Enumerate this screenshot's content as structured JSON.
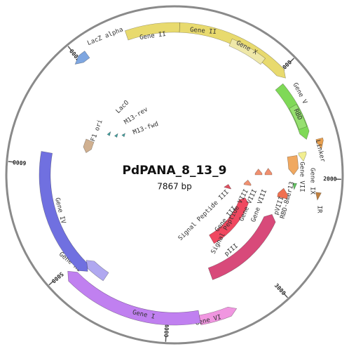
{
  "map": {
    "name": "PdPANA_8_13_9",
    "length": 7867,
    "length_label": "7867 bp",
    "ticks": [
      1000,
      2000,
      3000,
      4000,
      5000,
      6000,
      7000
    ],
    "features": [
      {
        "label": "LacZ alpha"
      },
      {
        "label": "Gene II"
      },
      {
        "label": "Gene II"
      },
      {
        "label": "Gene X"
      },
      {
        "label": "Gene V"
      },
      {
        "label": "RBD"
      },
      {
        "label": "Linker"
      },
      {
        "label": "Gene VII"
      },
      {
        "label": "Gene IX"
      },
      {
        "label": "IR"
      },
      {
        "label": "RBD-8mer13"
      },
      {
        "label": "pVIII"
      },
      {
        "label": "Signal Peptide III"
      },
      {
        "label": "Gene III"
      },
      {
        "label": "pIII"
      },
      {
        "label": "Signal Peptide VIII"
      },
      {
        "label": "Gene VIII"
      },
      {
        "label": "Gene VIII"
      },
      {
        "label": "Gene VI"
      },
      {
        "label": "Gene I"
      },
      {
        "label": "Gene XI"
      },
      {
        "label": "Gene IV"
      },
      {
        "label": "F1 ori"
      },
      {
        "label": "LacO"
      },
      {
        "label": "M13-rev"
      },
      {
        "label": "M13-fwd"
      }
    ]
  }
}
